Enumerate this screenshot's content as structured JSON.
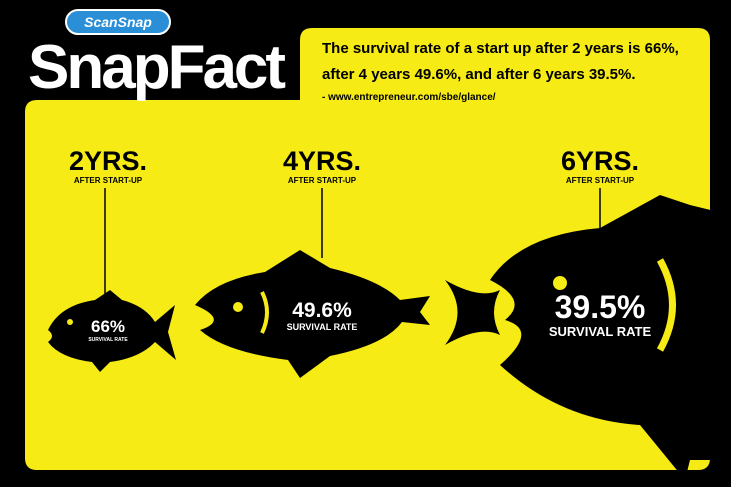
{
  "header": {
    "logo": "ScanSnap",
    "title": "SnapFact",
    "summary": [
      "The survival rate of a start up after 2 years is 66%,",
      "after 4 years 49.6%, and after 6 years 39.5%."
    ],
    "source": "- www.entrepreneur.com/sbe/glance/"
  },
  "stages": [
    {
      "period": "2YRS.",
      "caption": "AFTER START-UP",
      "rate": "66%",
      "rate_label": "SURVIVAL RATE"
    },
    {
      "period": "4YRS.",
      "caption": "AFTER START-UP",
      "rate": "49.6%",
      "rate_label": "SURVIVAL RATE"
    },
    {
      "period": "6YRS.",
      "caption": "AFTER START-UP",
      "rate": "39.5%",
      "rate_label": "SURVIVAL RATE"
    }
  ]
}
